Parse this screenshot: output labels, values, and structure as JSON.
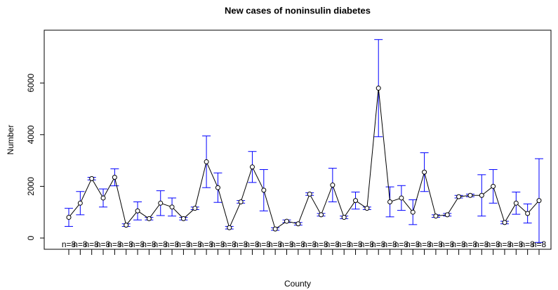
{
  "chart_data": {
    "type": "line",
    "title": "New cases of noninsulin diabetes",
    "xlabel": "County",
    "ylabel": "Number",
    "categories": [
      null,
      null,
      null,
      null,
      null,
      null,
      null,
      null,
      null,
      null,
      null,
      null,
      null,
      null,
      null,
      null,
      null,
      null,
      null,
      null,
      null,
      null,
      null,
      null,
      null,
      null,
      null,
      null,
      null,
      null,
      null,
      null,
      null,
      null,
      null,
      null,
      null,
      null,
      null,
      null,
      null,
      null
    ],
    "values": [
      800,
      1350,
      2300,
      1550,
      2350,
      500,
      1050,
      750,
      1350,
      1200,
      750,
      1150,
      2950,
      1950,
      400,
      1400,
      2750,
      1850,
      350,
      650,
      550,
      1700,
      900,
      2050,
      800,
      1450,
      1150,
      5800,
      1400,
      1550,
      1000,
      2550,
      850,
      900,
      1600,
      1650,
      1650,
      2000,
      600,
      1350,
      950,
      1450
    ],
    "errors": [
      350,
      450,
      50,
      350,
      330,
      50,
      350,
      50,
      480,
      350,
      50,
      50,
      1000,
      570,
      50,
      50,
      600,
      800,
      50,
      50,
      50,
      50,
      50,
      650,
      50,
      330,
      50,
      1880,
      580,
      480,
      480,
      750,
      50,
      50,
      50,
      50,
      800,
      650,
      50,
      430,
      370,
      1620
    ],
    "n_labels": [
      "n=8",
      "n=8",
      "n=8",
      "n=8",
      "n=8",
      "n=8",
      "n=8",
      "n=8",
      "n=8",
      "n=8",
      "n=8",
      "n=8",
      "n=8",
      "n=8",
      "n=8",
      "n=8",
      "n=8",
      "n=8",
      "n=8",
      "n=8",
      "n=8",
      "n=8",
      "n=8",
      "n=8",
      "n=8",
      "n=8",
      "n=8",
      "n=8",
      "n=8",
      "n=8",
      "n=8",
      "n=8",
      "n=8",
      "n=8",
      "n=8",
      "n=8",
      "n=8",
      "n=8",
      "n=8",
      "n=8",
      "n=8",
      "n=8"
    ],
    "color": "#000000",
    "error_color": "#0000ff",
    "ylim": [
      -435,
      8043
    ],
    "yticks": [
      0,
      2000,
      4000,
      6000
    ]
  }
}
